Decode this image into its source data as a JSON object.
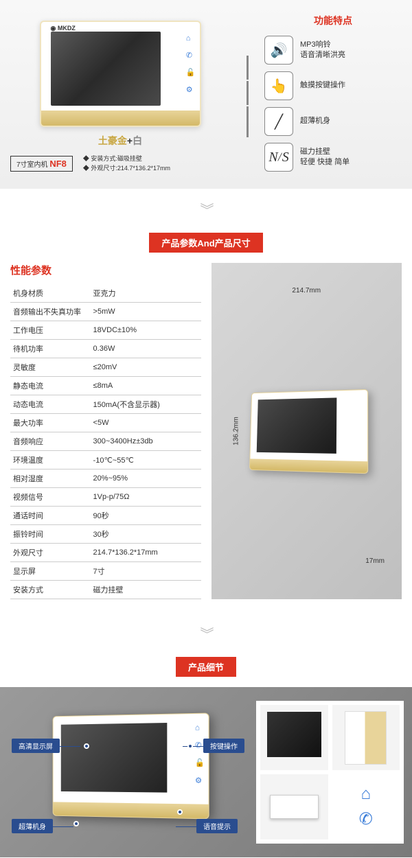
{
  "section1": {
    "logo": "◉ MKDZ",
    "color_label": {
      "gold": "土豪金",
      "plus": "+",
      "white": "白"
    },
    "model_prefix": "7寸室内机",
    "model": "NF8",
    "mini_specs": [
      "◆ 安装方式:磁吸挂壁",
      "◆ 外观尺寸:214.7*136.2*17mm"
    ],
    "features_title": "功能特点",
    "features": [
      {
        "icon": "🔊",
        "line1": "MP3响铃",
        "line2": "语音清晰洪亮"
      },
      {
        "icon": "👆",
        "line1": "触摸按键操作",
        "line2": ""
      },
      {
        "icon": "╱",
        "line1": "超薄机身",
        "line2": ""
      },
      {
        "icon": "N/S",
        "line1": "磁力挂壁",
        "line2": "轻便 快捷 简单"
      }
    ]
  },
  "banner1": "产品参数And产品尺寸",
  "spec": {
    "title": "性能参数",
    "rows": [
      [
        "机身材质",
        "亚克力"
      ],
      [
        "音频输出不失真功率",
        ">5mW"
      ],
      [
        "工作电压",
        "18VDC±10%"
      ],
      [
        "待机功率",
        "0.36W"
      ],
      [
        "灵敏度",
        "≤20mV"
      ],
      [
        "静态电流",
        "≤8mA"
      ],
      [
        "动态电流",
        "150mA(不含显示器)"
      ],
      [
        "最大功率",
        "<5W"
      ],
      [
        "音频响应",
        "300~3400Hz±3db"
      ],
      [
        "环境温度",
        "-10℃~55℃"
      ],
      [
        "相对湿度",
        "20%~95%"
      ],
      [
        "视频信号",
        "1Vp-p/75Ω"
      ],
      [
        "通话时间",
        "90秒"
      ],
      [
        "振铃时间",
        "30秒"
      ],
      [
        "外观尺寸",
        "214.7*136.2*17mm"
      ],
      [
        "显示屏",
        "7寸"
      ],
      [
        "安装方式",
        "磁力挂壁"
      ]
    ]
  },
  "dims": {
    "w": "214.7mm",
    "h": "136.2mm",
    "d": "17mm"
  },
  "banner2": "产品细节",
  "callouts": {
    "c1": "高清显示屏",
    "c2": "超薄机身",
    "c3": "按键操作",
    "c4": "语音提示"
  }
}
